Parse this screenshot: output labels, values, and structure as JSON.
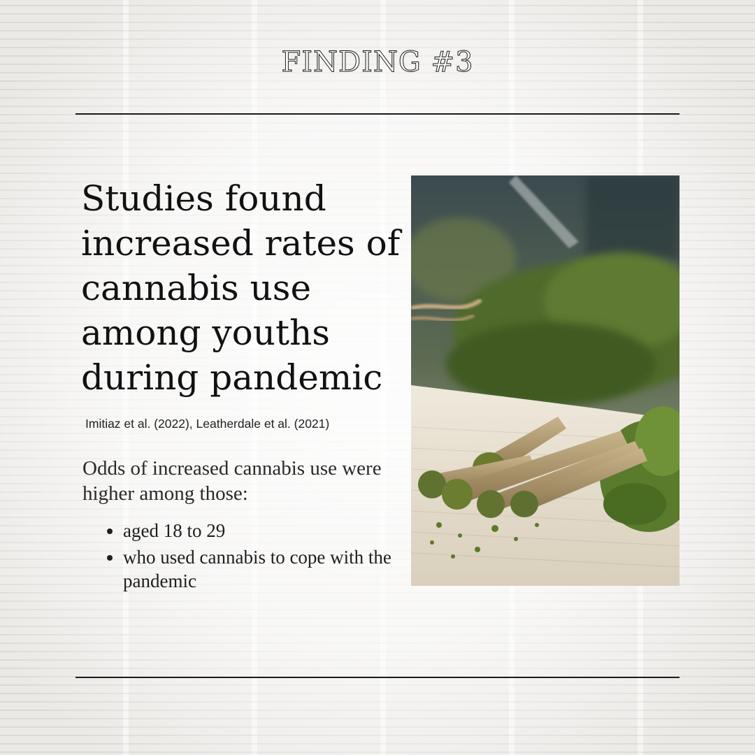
{
  "header": {
    "title": "FINDING #3"
  },
  "main": {
    "headline": "Studies found increased rates of cannabis use among youths during pandemic",
    "citation": "Imitiaz et al. (2022), Leatherdale et al. (2021)",
    "odds_intro": "Odds of increased cannabis use were higher among those:",
    "bullets": [
      "aged 18 to 29",
      "who used cannabis to cope with the pandemic"
    ]
  },
  "photo": {
    "alt": "cannabis-joints-photo"
  },
  "colors": {
    "rule": "#1d1d1d",
    "text": "#161616",
    "leaf": "#4d6a2e"
  }
}
